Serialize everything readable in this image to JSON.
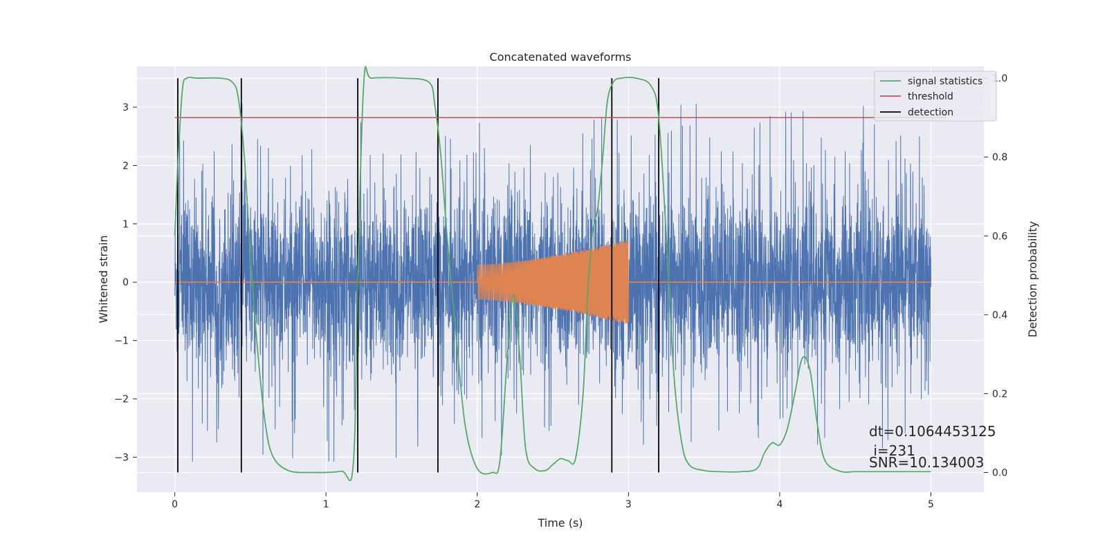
{
  "chart_data": {
    "type": "line",
    "title": "Concatenated waveforms",
    "xlabel": "Time (s)",
    "ylabel": "Whitened strain",
    "y2label": "Detection probability",
    "xlim": [
      -0.25,
      5.35
    ],
    "ylim": [
      -3.6,
      3.7
    ],
    "y2lim": [
      -0.05,
      1.03
    ],
    "xticks": [
      "0",
      "1",
      "2",
      "3",
      "4",
      "5"
    ],
    "yticks": [
      "3",
      "2",
      "1",
      "0",
      "−1",
      "−2",
      "−3"
    ],
    "y2ticks": [
      "1.0",
      "0.8",
      "0.6",
      "0.4",
      "0.2",
      "0.0"
    ],
    "grid": true,
    "legend_position": "top-right",
    "legend": [
      "signal statistics",
      "threshold",
      "detection"
    ],
    "colors": {
      "strain": "#4c72b0",
      "template": "#dd8452",
      "signal_statistics": "#55a868",
      "threshold": "#c44e52",
      "detection": "#000000",
      "background": "#eaeaf2",
      "grid": "#ffffff"
    },
    "threshold": 0.9,
    "detections": [
      0.02,
      0.44,
      1.21,
      1.74,
      2.89,
      3.2
    ],
    "template_window": [
      2.0,
      3.0
    ],
    "signal_statistics": {
      "x": [
        0,
        0.02,
        0.05,
        0.08,
        0.15,
        0.3,
        0.38,
        0.42,
        0.46,
        0.5,
        0.55,
        0.6,
        0.65,
        0.75,
        0.9,
        1.1,
        1.18,
        1.21,
        1.25,
        1.3,
        1.5,
        1.68,
        1.72,
        1.76,
        1.8,
        1.86,
        1.92,
        2.0,
        2.1,
        2.15,
        2.2,
        2.24,
        2.28,
        2.32,
        2.38,
        2.45,
        2.5,
        2.55,
        2.6,
        2.65,
        2.7,
        2.73,
        2.76,
        2.78,
        2.8,
        2.83,
        2.86,
        2.9,
        2.95,
        3.05,
        3.15,
        3.2,
        3.25,
        3.3,
        3.35,
        3.4,
        3.5,
        3.6,
        3.75,
        3.85,
        3.9,
        3.95,
        4.0,
        4.05,
        4.1,
        4.15,
        4.2,
        4.25,
        4.3,
        4.4,
        4.5,
        4.7,
        5.0
      ],
      "y": [
        0.6,
        0.78,
        0.97,
        1.0,
        1.0,
        1.0,
        0.99,
        0.95,
        0.8,
        0.55,
        0.3,
        0.12,
        0.04,
        0.005,
        0.0,
        0.003,
        0.02,
        0.5,
        0.99,
        1.0,
        1.0,
        0.99,
        0.93,
        0.8,
        0.6,
        0.35,
        0.12,
        0.01,
        0.0,
        0.03,
        0.3,
        0.45,
        0.3,
        0.06,
        0.01,
        0.005,
        0.02,
        0.035,
        0.03,
        0.035,
        0.2,
        0.45,
        0.6,
        0.64,
        0.68,
        0.8,
        0.94,
        0.99,
        1.0,
        1.0,
        0.98,
        0.9,
        0.6,
        0.25,
        0.08,
        0.02,
        0.005,
        0.002,
        0.002,
        0.01,
        0.05,
        0.075,
        0.07,
        0.11,
        0.2,
        0.29,
        0.26,
        0.12,
        0.03,
        0.003,
        0.002,
        0.002,
        0.002
      ]
    },
    "annotations": [
      "dt=0.1064453125",
      " i=231",
      "SNR=10.134003"
    ]
  }
}
